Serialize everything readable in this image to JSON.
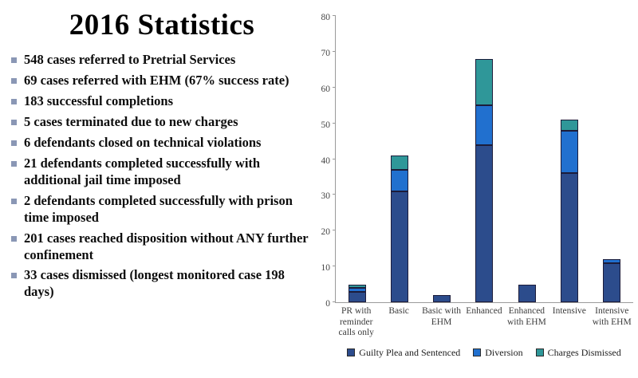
{
  "title": "2016 Statistics",
  "bullets": [
    "548 cases referred to Pretrial Services",
    "69 cases referred with EHM (67% success rate)",
    "183 successful completions",
    "5 cases terminated due to new charges",
    "6 defendants closed on technical violations",
    "21 defendants completed successfully with additional jail time imposed",
    "2 defendants completed successfully with prison time imposed",
    "201 cases reached disposition without ANY further confinement",
    "33 cases dismissed (longest monitored case 198 days)"
  ],
  "bullet_color": "#8a97b5",
  "chart_data": {
    "type": "bar",
    "stacked": true,
    "title": "",
    "xlabel": "",
    "ylabel": "",
    "ylim": [
      0,
      80
    ],
    "ytick_step": 10,
    "grid": false,
    "legend_position": "bottom",
    "categories": [
      "PR with reminder calls only",
      "Basic",
      "Basic with EHM",
      "Enhanced",
      "Enhanced with EHM",
      "Intensive",
      "Intensive with EHM"
    ],
    "series": [
      {
        "name": "Guilty Plea and Sentenced",
        "color": "#2c4c8c",
        "values": [
          3,
          31,
          2,
          44,
          5,
          36,
          11
        ]
      },
      {
        "name": "Diversion",
        "color": "#2170cf",
        "values": [
          1,
          6,
          0,
          11,
          0,
          12,
          1
        ]
      },
      {
        "name": "Charges Dismissed",
        "color": "#2f9799",
        "values": [
          1,
          4,
          0,
          13,
          0,
          3,
          0
        ]
      }
    ]
  }
}
